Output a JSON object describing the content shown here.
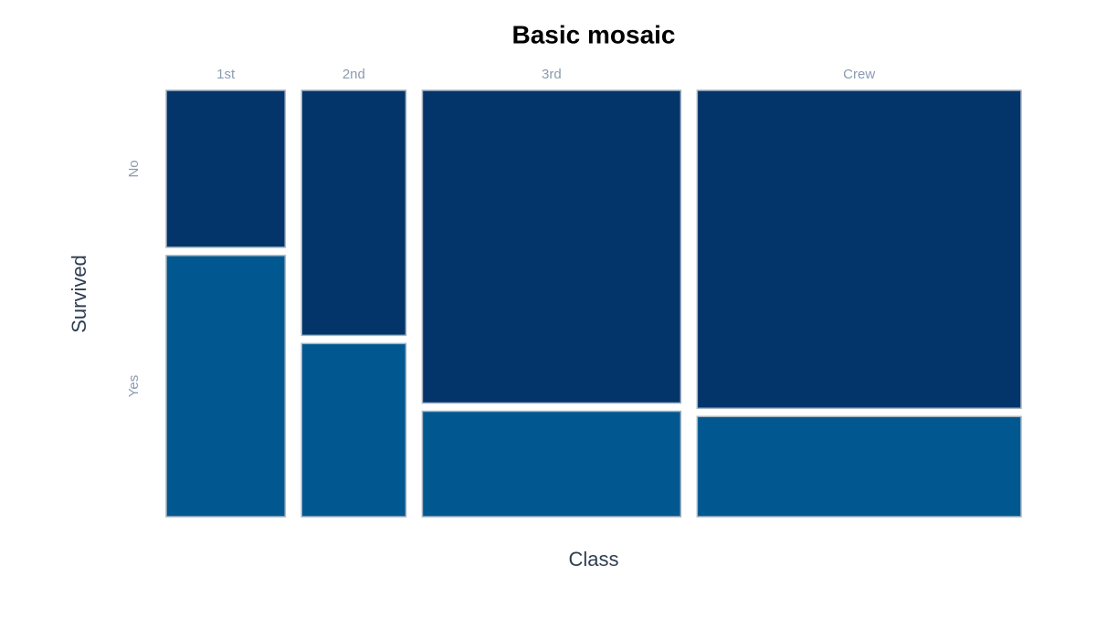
{
  "chart_data": {
    "type": "mosaic",
    "title": "Basic mosaic",
    "x_label": "Class",
    "y_label": "Survived",
    "categories": [
      "1st",
      "2nd",
      "3rd",
      "Crew"
    ],
    "series": [
      {
        "name": "No",
        "color": "#03356b",
        "values": [
          122,
          167,
          528,
          673
        ]
      },
      {
        "name": "Yes",
        "color": "#015891",
        "values": [
          203,
          118,
          178,
          212
        ]
      }
    ]
  }
}
